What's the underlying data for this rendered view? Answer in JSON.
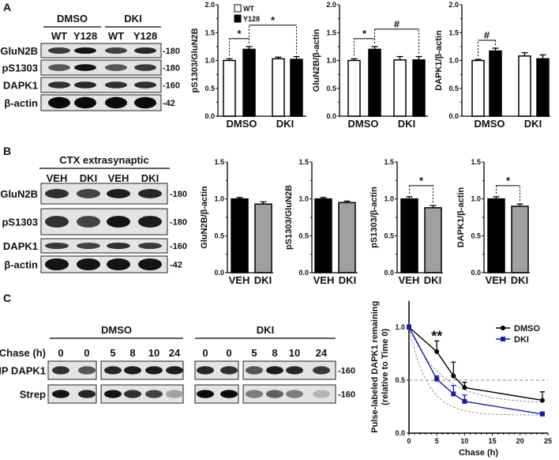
{
  "panels": {
    "a": "A",
    "b": "B",
    "c": "C"
  },
  "blot_a": {
    "groups": [
      "DMSO",
      "DKI"
    ],
    "lanes": [
      "WT",
      "Y128",
      "WT",
      "Y128"
    ],
    "rows": [
      {
        "label": "GluN2B",
        "size": "-180",
        "intensity": [
          0.75,
          0.95,
          0.7,
          0.85
        ]
      },
      {
        "label": "pS1303",
        "size": "-180",
        "intensity": [
          0.6,
          0.95,
          0.6,
          0.75
        ]
      },
      {
        "label": "DAPK1",
        "size": "-160",
        "intensity": [
          0.8,
          0.85,
          0.8,
          0.8
        ]
      },
      {
        "label": "β-actin",
        "size": "-42",
        "intensity": [
          1,
          1,
          1,
          1
        ]
      }
    ]
  },
  "blot_b": {
    "title": "CTX extrasynaptic",
    "lanes": [
      "VEH",
      "DKI",
      "VEH",
      "DKI"
    ],
    "rows": [
      {
        "label": "GluN2B",
        "size": "-180",
        "intensity": [
          0.8,
          0.7,
          0.9,
          0.85
        ]
      },
      {
        "label": "pS1303",
        "size": "-180",
        "intensity": [
          0.8,
          0.7,
          0.95,
          0.9
        ]
      },
      {
        "label": "DAPK1",
        "size": "-160",
        "intensity": [
          0.75,
          0.7,
          0.8,
          0.75
        ]
      },
      {
        "label": "β-actin",
        "size": "-42",
        "intensity": [
          0.95,
          0.95,
          0.95,
          0.95
        ]
      }
    ]
  },
  "blot_c": {
    "groups": [
      "DMSO",
      "DKI"
    ],
    "chase_label": "Chase (h)",
    "lanes": [
      "0",
      "0",
      "5",
      "8",
      "10",
      "24",
      "0",
      "0",
      "5",
      "8",
      "10",
      "24"
    ],
    "rows": [
      {
        "label": "IP DAPK1",
        "size": "-160",
        "intensity": [
          0.8,
          0.6,
          0.85,
          0.9,
          0.9,
          0.9,
          0.85,
          0.8,
          0.6,
          0.9,
          0.85,
          0.75
        ]
      },
      {
        "label": "Strep",
        "size": "-160",
        "intensity": [
          0.95,
          0.85,
          0.95,
          0.8,
          0.7,
          0.2,
          1,
          1,
          0.4,
          0.55,
          0.4,
          0.1
        ]
      }
    ]
  },
  "chart_data": [
    {
      "type": "bar",
      "ylabel": "pS1303/GluN2B",
      "ylim": [
        0,
        2.0
      ],
      "yticks": [
        "0.0",
        "0.5",
        "1.0",
        "1.5",
        "2.0"
      ],
      "categories": [
        "DMSO",
        "DKI"
      ],
      "legend": [
        "WT",
        "Y128"
      ],
      "series": [
        {
          "name": "WT",
          "values": [
            1.0,
            1.03
          ],
          "errors": [
            0.03,
            0.03
          ]
        },
        {
          "name": "Y128",
          "values": [
            1.2,
            1.02
          ],
          "errors": [
            0.05,
            0.05
          ]
        }
      ],
      "annotations": [
        {
          "text": "*",
          "bars": [
            0,
            1
          ]
        },
        {
          "text": "*",
          "bars": [
            1,
            3
          ]
        }
      ]
    },
    {
      "type": "bar",
      "ylabel": "GluN2B/β-actin",
      "ylim": [
        0,
        2.0
      ],
      "yticks": [
        "0.0",
        "0.5",
        "1.0",
        "1.5",
        "2.0"
      ],
      "categories": [
        "DMSO",
        "DKI"
      ],
      "series": [
        {
          "name": "WT",
          "values": [
            1.0,
            1.01
          ],
          "errors": [
            0.03,
            0.06
          ]
        },
        {
          "name": "Y128",
          "values": [
            1.2,
            1.01
          ],
          "errors": [
            0.05,
            0.06
          ]
        }
      ],
      "annotations": [
        {
          "text": "*",
          "bars": [
            0,
            1
          ]
        },
        {
          "text": "#",
          "bars": [
            1,
            3
          ]
        }
      ]
    },
    {
      "type": "bar",
      "ylabel": "DAPK1/β-actin",
      "ylim": [
        0,
        2.0
      ],
      "yticks": [
        "0.0",
        "0.5",
        "1.0",
        "1.5",
        "2.0"
      ],
      "categories": [
        "DMSO",
        "DKI"
      ],
      "series": [
        {
          "name": "WT",
          "values": [
            1.0,
            1.08
          ],
          "errors": [
            0.02,
            0.06
          ]
        },
        {
          "name": "Y128",
          "values": [
            1.17,
            1.03
          ],
          "errors": [
            0.05,
            0.07
          ]
        }
      ],
      "annotations": [
        {
          "text": "#",
          "bars": [
            0,
            1
          ]
        }
      ]
    },
    {
      "type": "bar",
      "ylabel": "GluN2B/β-actin",
      "ylim": [
        0,
        1.5
      ],
      "yticks": [
        "0.0",
        "0.5",
        "1.0",
        "1.5"
      ],
      "categories": [
        "VEH",
        "DKI"
      ],
      "values": [
        1.0,
        0.93
      ],
      "errors": [
        0.02,
        0.03
      ],
      "colors": [
        "#000000",
        "#a0a0a0"
      ],
      "annotations": []
    },
    {
      "type": "bar",
      "ylabel": "pS1303/GluN2B",
      "ylim": [
        0,
        1.5
      ],
      "yticks": [
        "0.0",
        "0.5",
        "1.0",
        "1.5"
      ],
      "categories": [
        "VEH",
        "DKI"
      ],
      "values": [
        1.0,
        0.95
      ],
      "errors": [
        0.02,
        0.02
      ],
      "colors": [
        "#000000",
        "#a0a0a0"
      ],
      "annotations": []
    },
    {
      "type": "bar",
      "ylabel": "pS1303/β-actin",
      "ylim": [
        0,
        1.5
      ],
      "yticks": [
        "0.0",
        "0.5",
        "1.0",
        "1.5"
      ],
      "categories": [
        "VEH",
        "DKI"
      ],
      "values": [
        1.0,
        0.88
      ],
      "errors": [
        0.03,
        0.03
      ],
      "colors": [
        "#000000",
        "#a0a0a0"
      ],
      "annotations": [
        {
          "text": "*",
          "bars": [
            0,
            1
          ]
        }
      ]
    },
    {
      "type": "bar",
      "ylabel": "DAPK1/β-actin",
      "ylim": [
        0,
        1.5
      ],
      "yticks": [
        "0.0",
        "0.5",
        "1.0",
        "1.5"
      ],
      "categories": [
        "VEH",
        "DKI"
      ],
      "values": [
        1.0,
        0.9
      ],
      "errors": [
        0.03,
        0.03
      ],
      "colors": [
        "#000000",
        "#a0a0a0"
      ],
      "annotations": [
        {
          "text": "*",
          "bars": [
            0,
            1
          ]
        }
      ]
    },
    {
      "type": "line",
      "xlabel": "Chase (h)",
      "ylabel": [
        "Pulse-labeled DAPK1 remaining",
        "(relative to Time 0)"
      ],
      "xlim": [
        0,
        25
      ],
      "ylim": [
        0,
        1.25
      ],
      "xticks": [
        "0",
        "5",
        "10",
        "15",
        "20",
        "25"
      ],
      "yticks": [
        "0.0",
        "0.5",
        "1.0"
      ],
      "reference_line": 0.5,
      "legend": "top-right",
      "annotation": "**",
      "annotation_x": 5,
      "x": [
        0,
        5,
        8,
        10,
        24
      ],
      "series": [
        {
          "name": "DMSO",
          "color": "#000000",
          "marker": "circle",
          "values": [
            1.0,
            0.77,
            0.54,
            0.43,
            0.31
          ],
          "errors": [
            0.02,
            0.1,
            0.13,
            0.05,
            0.08
          ]
        },
        {
          "name": "DKI",
          "color": "#1a1ab4",
          "marker": "square",
          "values": [
            1.0,
            0.51,
            0.37,
            0.3,
            0.18
          ],
          "errors": [
            0.02,
            0.03,
            0.08,
            0.06,
            0.02
          ]
        }
      ]
    }
  ]
}
